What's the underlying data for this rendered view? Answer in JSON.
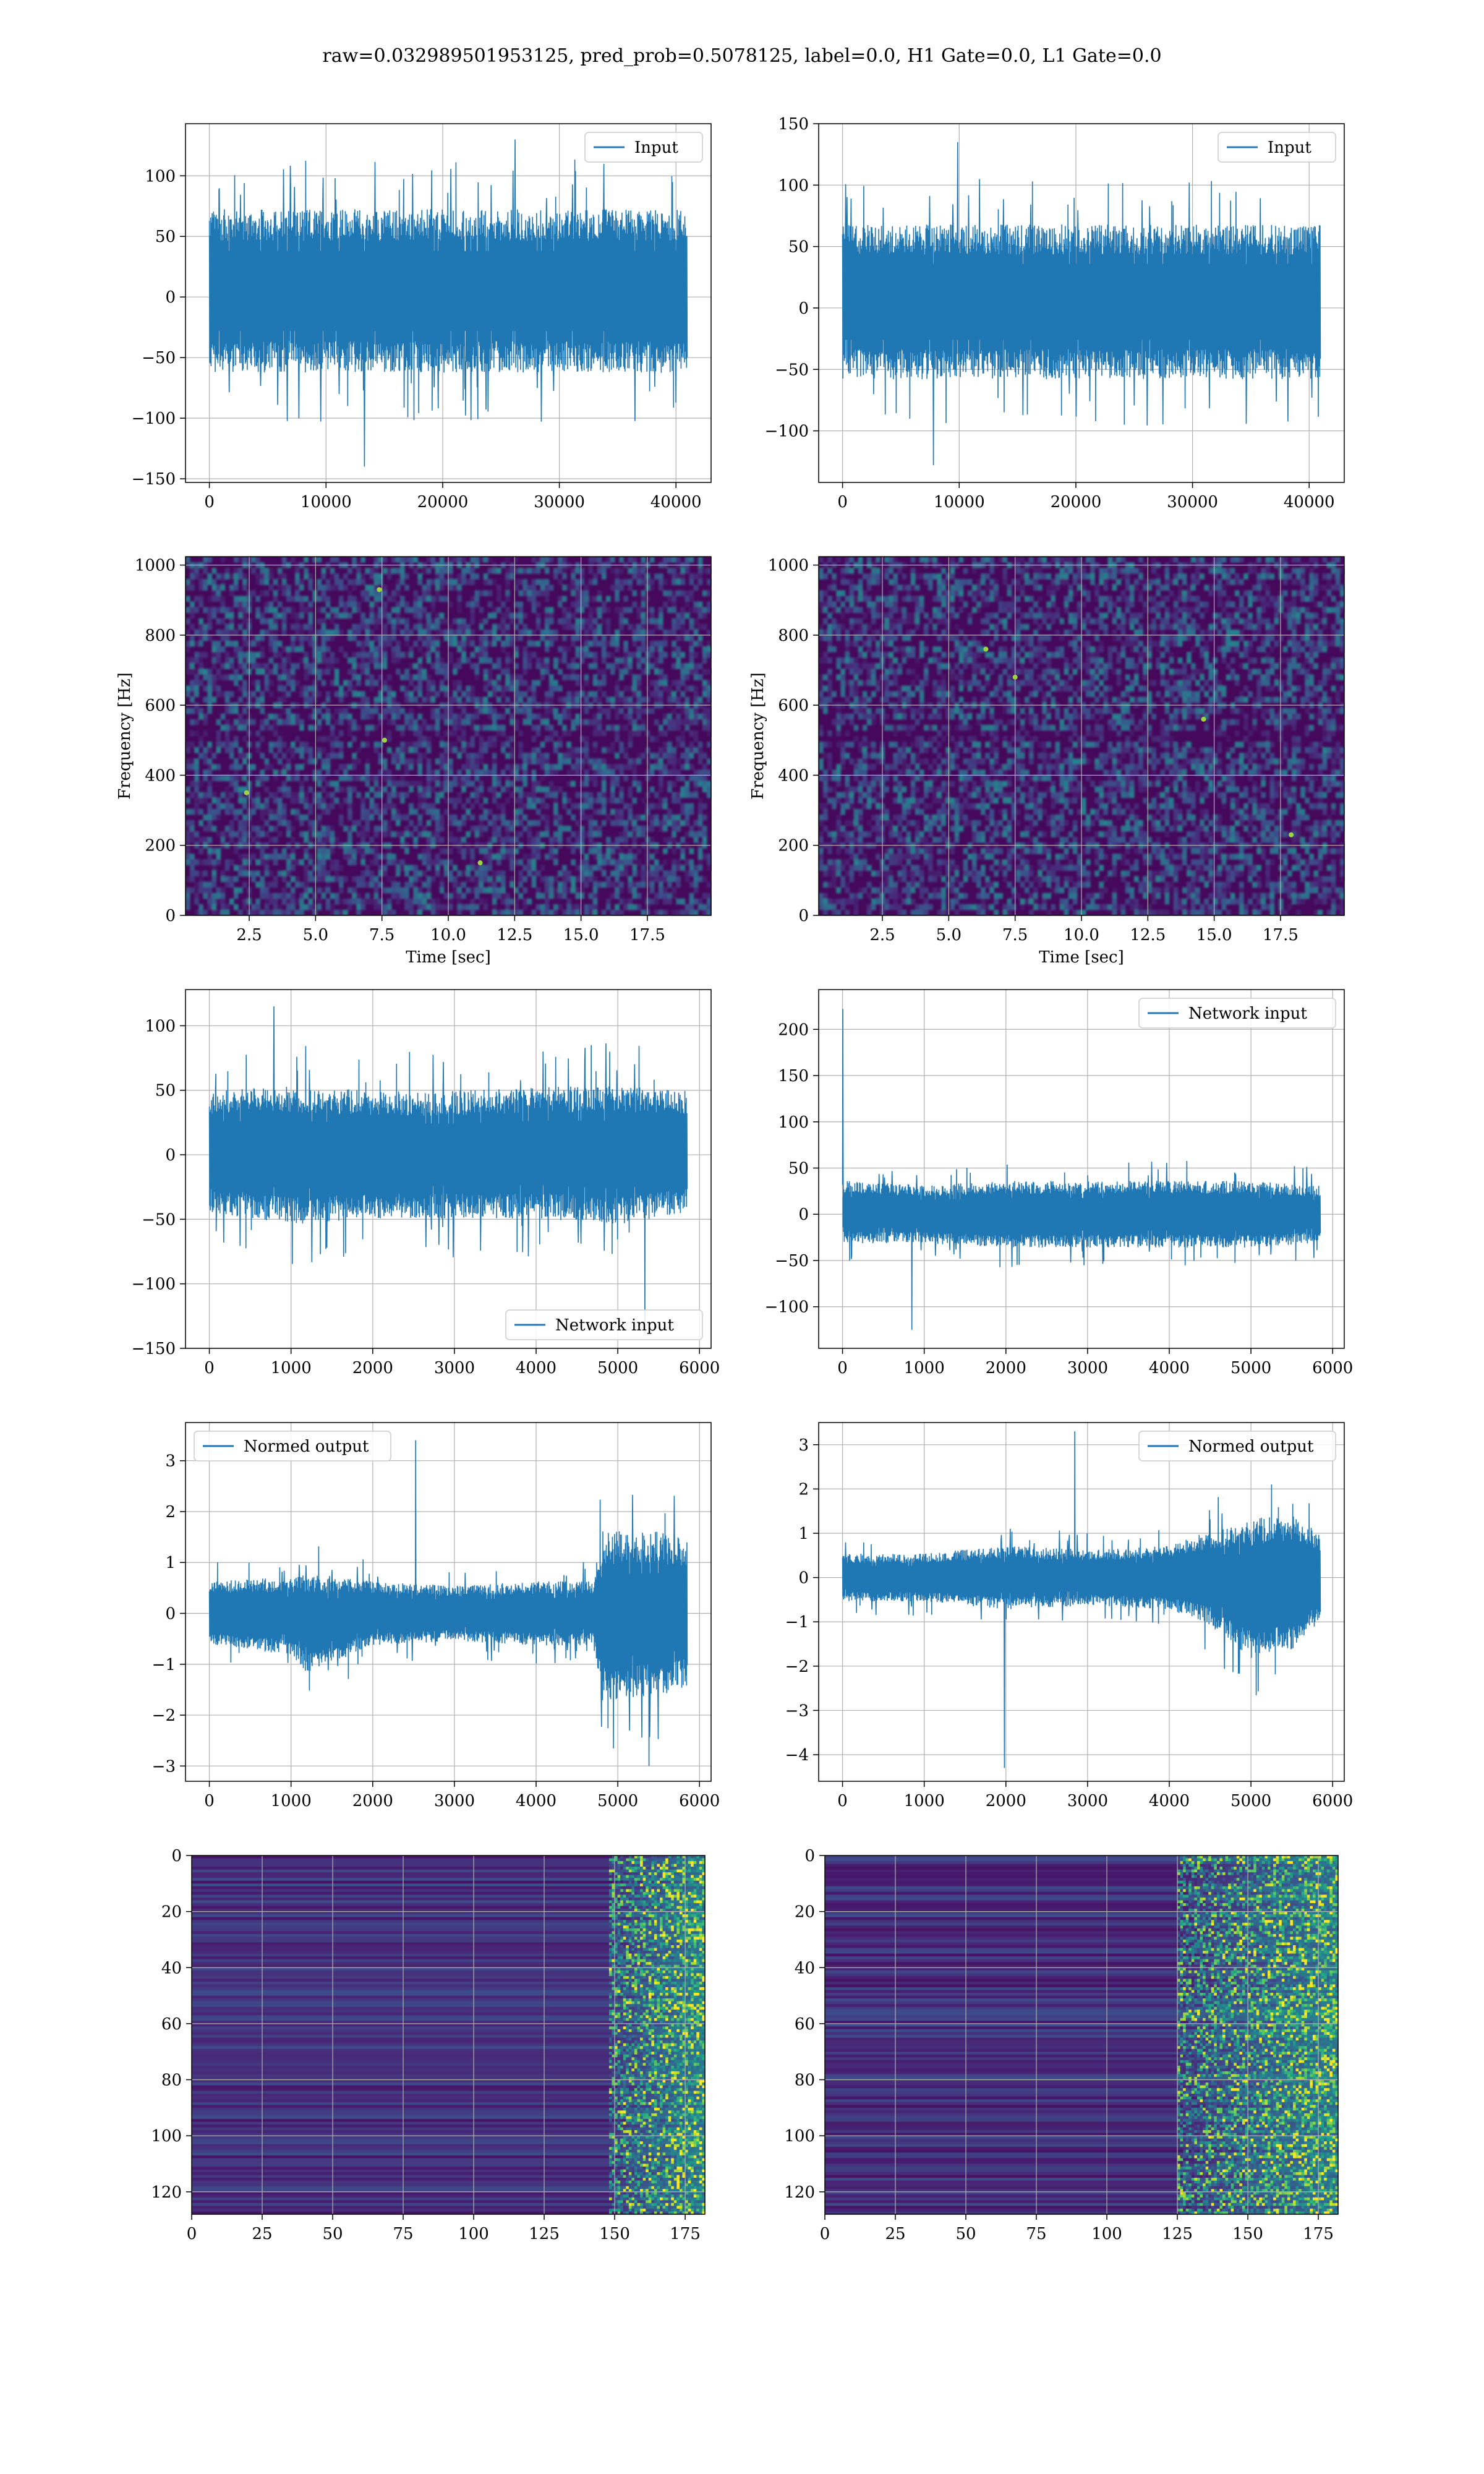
{
  "figure": {
    "suptitle": "raw=0.032989501953125, pred_prob=0.5078125, label=0.0, H1 Gate=0.0, L1 Gate=0.0",
    "line_color": "#1f77b4",
    "grid_color": "#b0b0b0",
    "colormap": "viridis"
  },
  "chart_data": [
    {
      "type": "line",
      "legend": "Input",
      "legend_loc": "upper right",
      "series": [
        {
          "name": "Input",
          "n_points": 40960,
          "x_range": [
            0,
            40960
          ],
          "envelope": {
            "x": [
              0,
              40960
            ],
            "upper": [
              80,
              80
            ],
            "lower": [
              -70,
              -70
            ]
          },
          "spikes_max": 130,
          "spikes_min": -140
        }
      ],
      "xticks": [
        0,
        10000,
        20000,
        30000,
        40000
      ],
      "yticks": [
        -150,
        -100,
        -50,
        0,
        50,
        100
      ],
      "xlim": [
        -2048,
        43008
      ],
      "ylim": [
        -153,
        143
      ],
      "grid": true
    },
    {
      "type": "line",
      "legend": "Input",
      "legend_loc": "upper right",
      "series": [
        {
          "name": "Input",
          "n_points": 40960,
          "x_range": [
            0,
            40960
          ],
          "envelope": {
            "x": [
              0,
              40960
            ],
            "upper": [
              75,
              75
            ],
            "lower": [
              -65,
              -65
            ]
          },
          "spikes_max": 135,
          "spikes_min": -128
        }
      ],
      "xticks": [
        0,
        10000,
        20000,
        30000,
        40000
      ],
      "yticks": [
        -100,
        -50,
        0,
        50,
        100,
        150
      ],
      "xlim": [
        -2048,
        43008
      ],
      "ylim": [
        -142,
        150
      ],
      "grid": true
    },
    {
      "type": "heatmap",
      "colormap": "viridis",
      "xlabel": "Time [sec]",
      "ylabel": "Frequency [Hz]",
      "xticks": [
        2.5,
        5.0,
        7.5,
        10.0,
        12.5,
        15.0,
        17.5
      ],
      "yticks": [
        0,
        200,
        400,
        600,
        800,
        1000
      ],
      "xlim": [
        0.1,
        19.9
      ],
      "ylim": [
        0,
        1024
      ],
      "grid": true,
      "bright_points": [
        [
          7.4,
          930
        ],
        [
          7.6,
          500
        ],
        [
          2.4,
          350
        ],
        [
          11.2,
          150
        ]
      ]
    },
    {
      "type": "heatmap",
      "colormap": "viridis",
      "xlabel": "Time [sec]",
      "ylabel": "Frequency [Hz]",
      "xticks": [
        2.5,
        5.0,
        7.5,
        10.0,
        12.5,
        15.0,
        17.5
      ],
      "yticks": [
        0,
        200,
        400,
        600,
        800,
        1000
      ],
      "xlim": [
        0.1,
        19.9
      ],
      "ylim": [
        0,
        1024
      ],
      "grid": true,
      "bright_points": [
        [
          6.4,
          760
        ],
        [
          7.5,
          680
        ],
        [
          14.6,
          560
        ],
        [
          17.9,
          230
        ]
      ]
    },
    {
      "type": "line",
      "legend": "Network input",
      "legend_loc": "lower right",
      "series": [
        {
          "name": "Network input",
          "n_points": 5850,
          "x_range": [
            0,
            5850
          ],
          "envelope": {
            "x": [
              0,
              1000,
              2000,
              3000,
              4000,
              5000,
              5850
            ],
            "upper": [
              55,
              60,
              55,
              55,
              58,
              60,
              55
            ],
            "lower": [
              -50,
              -60,
              -55,
              -55,
              -55,
              -60,
              -50
            ]
          },
          "spikes_max": 115,
          "spikes_min": -138
        }
      ],
      "xticks": [
        0,
        1000,
        2000,
        3000,
        4000,
        5000,
        6000
      ],
      "yticks": [
        -150,
        -100,
        -50,
        0,
        50,
        100
      ],
      "xlim": [
        -292,
        6142
      ],
      "ylim": [
        -150,
        128
      ],
      "grid": true
    },
    {
      "type": "line",
      "legend": "Network input",
      "legend_loc": "upper right",
      "series": [
        {
          "name": "Network input",
          "n_points": 5850,
          "x_range": [
            0,
            5850
          ],
          "envelope": {
            "x": [
              0,
              1000,
              2000,
              3000,
              4000,
              5000,
              5800
            ],
            "upper": [
              40,
              35,
              40,
              40,
              40,
              40,
              35
            ],
            "lower": [
              -35,
              -35,
              -40,
              -40,
              -40,
              -40,
              -35
            ]
          },
          "spikes_max": 222,
          "spikes_min": -125
        }
      ],
      "xticks": [
        0,
        1000,
        2000,
        3000,
        4000,
        5000,
        6000
      ],
      "yticks": [
        -100,
        -50,
        0,
        50,
        100,
        150,
        200
      ],
      "xlim": [
        -292,
        6142
      ],
      "ylim": [
        -145,
        243
      ],
      "grid": true
    },
    {
      "type": "line",
      "legend": "Normed output",
      "legend_loc": "upper left",
      "series": [
        {
          "name": "Normed output",
          "n_points": 5850,
          "x_range": [
            0,
            5850
          ],
          "envelope": {
            "x": [
              0,
              1000,
              1200,
              2000,
              3000,
              4000,
              4700,
              4800,
              5500,
              5850
            ],
            "upper": [
              0.7,
              0.8,
              0.9,
              0.7,
              0.6,
              0.7,
              0.7,
              1.8,
              1.8,
              1.6
            ],
            "lower": [
              -0.7,
              -0.9,
              -1.3,
              -0.7,
              -0.6,
              -0.7,
              -0.7,
              -1.9,
              -1.8,
              -1.6
            ]
          },
          "spikes_max": 3.4,
          "spikes_min": -3.0
        }
      ],
      "xticks": [
        0,
        1000,
        2000,
        3000,
        4000,
        5000,
        6000
      ],
      "yticks": [
        -3,
        -2,
        -1,
        0,
        1,
        2,
        3
      ],
      "xlim": [
        -292,
        6142
      ],
      "ylim": [
        -3.3,
        3.75
      ],
      "grid": true
    },
    {
      "type": "line",
      "legend": "Normed output",
      "legend_loc": "upper right",
      "series": [
        {
          "name": "Normed output",
          "n_points": 5850,
          "x_range": [
            0,
            5850
          ],
          "envelope": {
            "x": [
              0,
              1000,
              2000,
              3000,
              4000,
              4500,
              5000,
              5500,
              5850
            ],
            "upper": [
              0.6,
              0.6,
              0.8,
              0.7,
              0.8,
              1.2,
              1.5,
              1.6,
              1.1
            ],
            "lower": [
              -0.6,
              -0.6,
              -0.8,
              -0.7,
              -0.8,
              -1.2,
              -2.0,
              -1.8,
              -1.1
            ]
          },
          "spikes_max": 3.3,
          "spikes_min": -4.3
        }
      ],
      "xticks": [
        0,
        1000,
        2000,
        3000,
        4000,
        5000,
        6000
      ],
      "yticks": [
        -4,
        -3,
        -2,
        -1,
        0,
        1,
        2,
        3
      ],
      "xlim": [
        -292,
        6142
      ],
      "ylim": [
        -4.6,
        3.5
      ],
      "grid": true
    },
    {
      "type": "heatmap",
      "colormap": "viridis",
      "rows": 128,
      "cols": 182,
      "active_from_col": 148,
      "xticks": [
        0,
        25,
        50,
        75,
        100,
        125,
        150,
        175
      ],
      "yticks": [
        0,
        20,
        40,
        60,
        80,
        100,
        120
      ],
      "xlim": [
        0,
        182
      ],
      "ylim": [
        128,
        0
      ],
      "grid": true
    },
    {
      "type": "heatmap",
      "colormap": "viridis",
      "rows": 128,
      "cols": 182,
      "active_from_col": 125,
      "xticks": [
        0,
        25,
        50,
        75,
        100,
        125,
        150,
        175
      ],
      "yticks": [
        0,
        20,
        40,
        60,
        80,
        100,
        120
      ],
      "xlim": [
        0,
        182
      ],
      "ylim": [
        128,
        0
      ],
      "grid": true
    }
  ]
}
